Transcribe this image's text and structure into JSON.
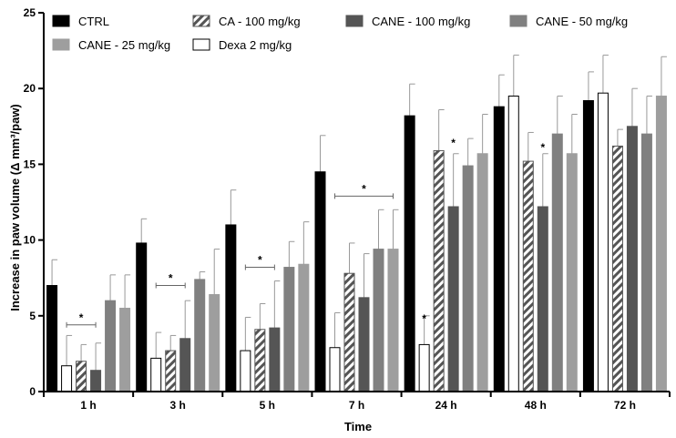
{
  "chart_data": {
    "type": "bar",
    "title": "",
    "xlabel": "Time",
    "ylabel": "Increase in paw volume (Δ mm³/paw)",
    "ylim": [
      0,
      25
    ],
    "yticks": [
      0,
      5,
      10,
      15,
      20,
      25
    ],
    "categories": [
      "1 h",
      "3 h",
      "5 h",
      "7 h",
      "24 h",
      "48 h",
      "72 h"
    ],
    "series": [
      {
        "name": "CTRL",
        "style": "black",
        "color": "#000000",
        "values": [
          7.0,
          9.8,
          11.0,
          14.5,
          18.2,
          18.8,
          19.2
        ],
        "errors": [
          1.7,
          1.6,
          2.3,
          2.4,
          2.1,
          2.1,
          1.9
        ]
      },
      {
        "name": "Dexa 2 mg/kg",
        "style": "white",
        "color": "#ffffff",
        "values": [
          1.7,
          2.2,
          2.7,
          2.9,
          3.1,
          19.5,
          19.7
        ],
        "errors": [
          2.0,
          1.7,
          2.2,
          2.3,
          1.9,
          2.7,
          2.5
        ]
      },
      {
        "name": "CA - 100 mg/kg",
        "style": "hatched",
        "color": "#555555",
        "values": [
          2.0,
          2.7,
          4.1,
          7.8,
          15.9,
          15.2,
          16.2
        ],
        "errors": [
          1.1,
          1.0,
          1.7,
          2.0,
          2.7,
          1.9,
          1.1
        ]
      },
      {
        "name": "CANE - 100 mg/kg",
        "style": "darkgray",
        "color": "#555555",
        "values": [
          1.4,
          3.5,
          4.2,
          6.2,
          12.2,
          12.2,
          17.5
        ],
        "errors": [
          1.8,
          2.5,
          3.1,
          2.9,
          3.5,
          3.5,
          2.5
        ]
      },
      {
        "name": "CANE - 50 mg/kg",
        "style": "gray",
        "color": "#808080",
        "values": [
          6.0,
          7.4,
          8.2,
          9.4,
          14.9,
          17.0,
          17.0
        ],
        "errors": [
          1.7,
          0.5,
          1.7,
          2.6,
          1.8,
          2.5,
          2.5
        ]
      },
      {
        "name": "CANE - 25 mg/kg",
        "style": "lightgray",
        "color": "#9e9e9e",
        "values": [
          5.5,
          6.4,
          8.4,
          9.4,
          15.7,
          15.7,
          19.5
        ],
        "errors": [
          2.2,
          3.0,
          2.8,
          2.6,
          2.6,
          2.6,
          2.6
        ]
      }
    ],
    "annotations": [
      {
        "text": "*",
        "category": "1 h",
        "type": "bracket",
        "from_series": 1,
        "to_series": 3,
        "y": 4.4
      },
      {
        "text": "*",
        "category": "3 h",
        "type": "bracket",
        "from_series": 1,
        "to_series": 3,
        "y": 7.0
      },
      {
        "text": "*",
        "category": "5 h",
        "type": "bracket",
        "from_series": 1,
        "to_series": 3,
        "y": 8.2
      },
      {
        "text": "*",
        "category": "7 h",
        "type": "bracket",
        "from_series": 1,
        "to_series": 5,
        "y": 12.9
      },
      {
        "text": "*",
        "category": "24 h",
        "type": "star",
        "series": 1,
        "y": 4.8
      },
      {
        "text": "*",
        "category": "24 h",
        "type": "star",
        "series": 3,
        "y": 16.4
      },
      {
        "text": "*",
        "category": "48 h",
        "type": "star",
        "series": 3,
        "y": 16.1
      }
    ],
    "legend": {
      "placement": "top-left",
      "rows": [
        [
          "CTRL",
          "CA - 100 mg/kg",
          "CANE - 100 mg/kg",
          "CANE - 50 mg/kg"
        ],
        [
          "CANE - 25 mg/kg",
          "Dexa 2 mg/kg"
        ]
      ]
    },
    "grid": false
  }
}
